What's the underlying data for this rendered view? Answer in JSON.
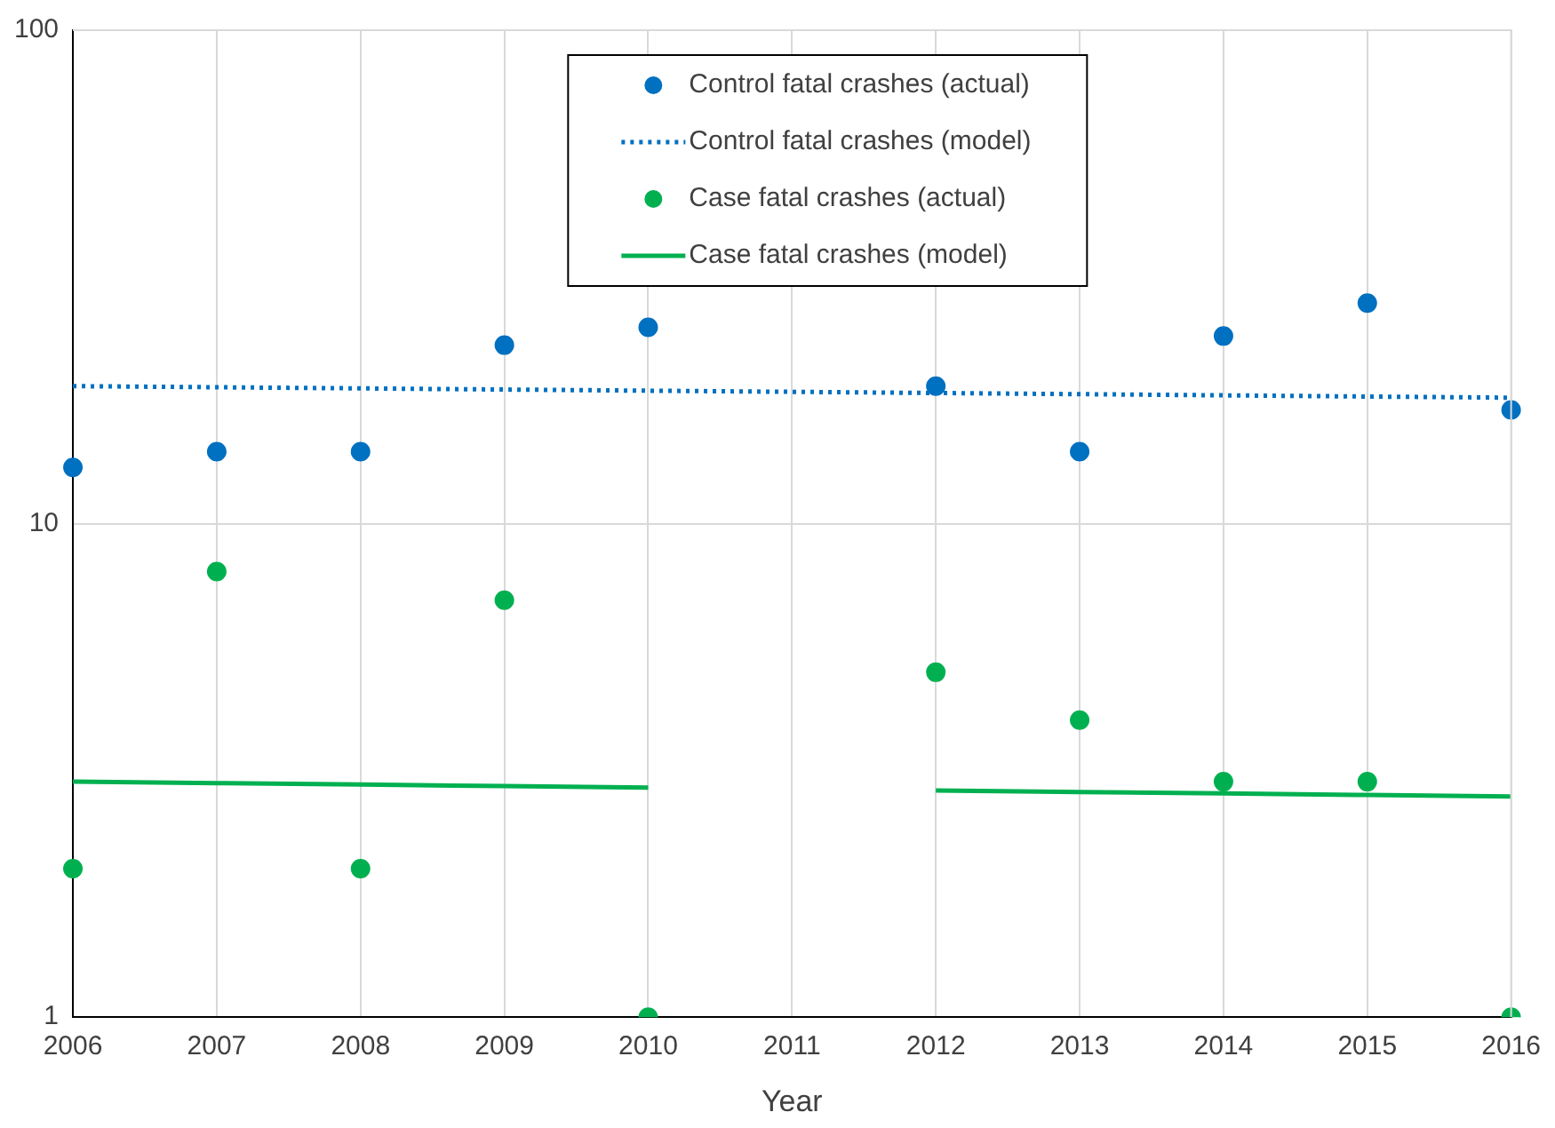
{
  "chart_data": {
    "type": "scatter",
    "xlabel": "Year",
    "categories": [
      "2006",
      "2007",
      "2008",
      "2009",
      "2010",
      "2011",
      "2012",
      "2013",
      "2014",
      "2015",
      "2016"
    ],
    "series": [
      {
        "name": "Control fatal crashes (actual)",
        "type": "scatter",
        "marker": "circle",
        "color": "#0070c0",
        "values": [
          13,
          14,
          14,
          23,
          25,
          null,
          19,
          14,
          24,
          28,
          17
        ]
      },
      {
        "name": "Control fatal crashes (model)",
        "type": "line",
        "marker": "none",
        "line_style": "dotted",
        "color": "#0070c0",
        "values": [
          19,
          18.9,
          18.8,
          18.7,
          18.6,
          18.5,
          18.4,
          18.3,
          18.2,
          18.1,
          18
        ]
      },
      {
        "name": "Case fatal crashes (actual)",
        "type": "scatter",
        "marker": "circle",
        "color": "#00b050",
        "values": [
          2,
          8,
          2,
          7,
          1,
          null,
          5,
          4,
          3,
          3,
          1
        ]
      },
      {
        "name": "Case fatal crashes (model)",
        "type": "line",
        "marker": "none",
        "line_style": "solid",
        "color": "#00b050",
        "values": [
          3,
          2.98,
          2.96,
          2.94,
          2.92,
          null,
          2.88,
          2.86,
          2.84,
          2.82,
          2.8
        ]
      }
    ],
    "log": "y",
    "ylim": [
      1,
      100
    ],
    "yticks": [
      1,
      10,
      100
    ],
    "grid": true,
    "legend": "top"
  }
}
